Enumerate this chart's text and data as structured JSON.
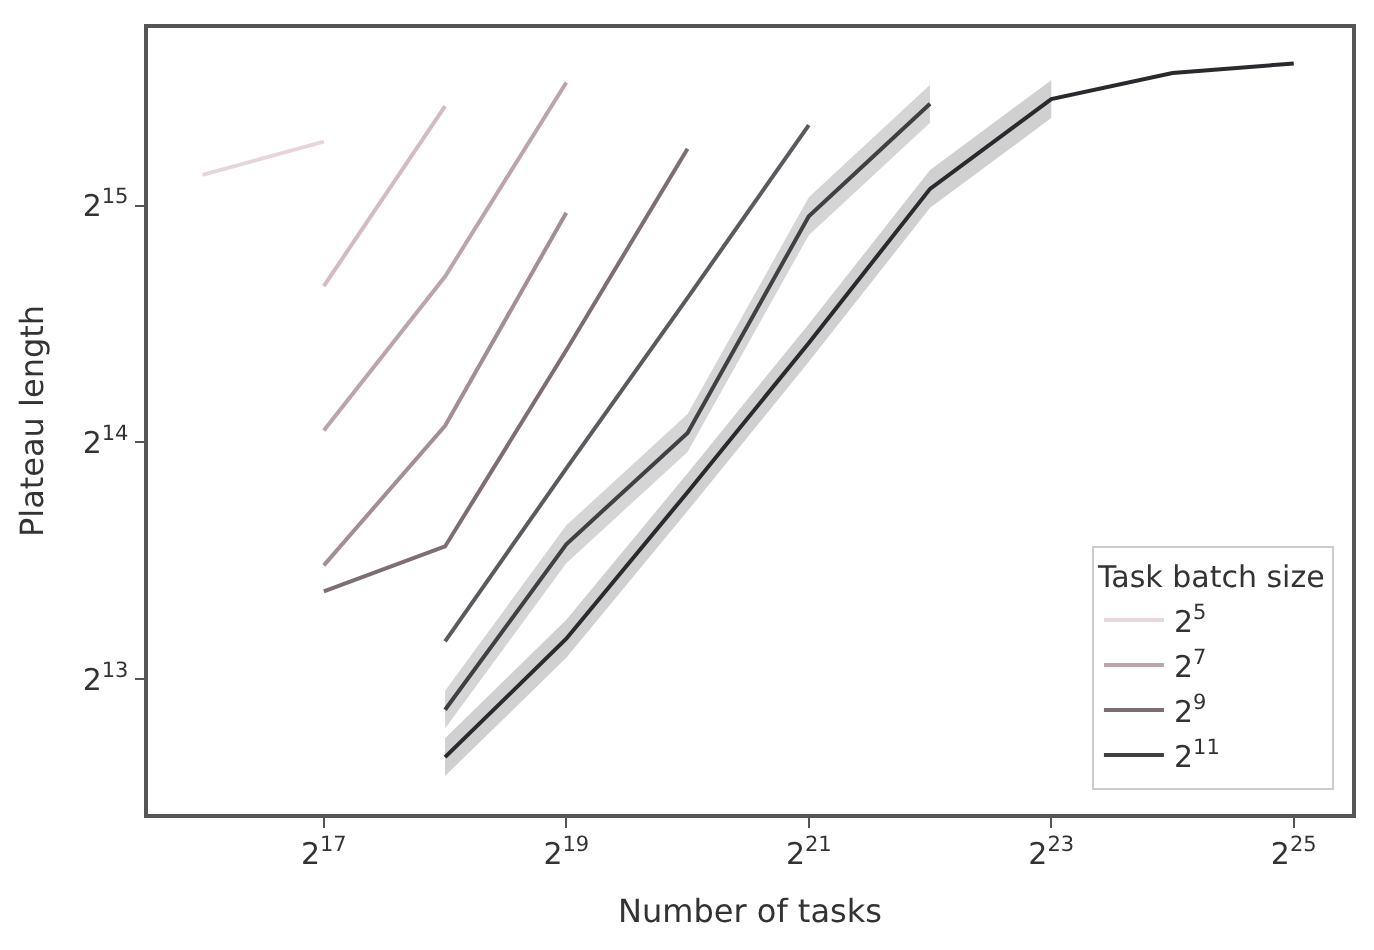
{
  "chart_data": {
    "type": "line",
    "xlabel": "Number of tasks",
    "ylabel": "Plateau length",
    "legend_title": "Task batch size",
    "legend": "bottom right",
    "log": "xy",
    "marker": "none",
    "line_style": "solid",
    "xlim": [
      47970,
      46810000
    ],
    "ylim": [
      5520,
      55110
    ],
    "xticks": [
      {
        "value": 131072,
        "label": "2$^{17}$"
      },
      {
        "value": 524288,
        "label": "2$^{19}$"
      },
      {
        "value": 2097152,
        "label": "2$^{21}$"
      },
      {
        "value": 8388608,
        "label": "2$^{23}$"
      },
      {
        "value": 33554432,
        "label": "2$^{25}$"
      }
    ],
    "yticks": [
      {
        "value": 8192,
        "label": "2$^{13}$"
      },
      {
        "value": 16384,
        "label": "2$^{14}$"
      },
      {
        "value": 32768,
        "label": "2$^{15}$"
      }
    ],
    "series": [
      {
        "name": "2$^{5}$",
        "color": "#e6d6da",
        "x": [
          65536,
          131072
        ],
        "values": [
          35850,
          39520
        ]
      },
      {
        "color": "#d2bcc2",
        "x": [
          131072,
          262144
        ],
        "values": [
          25890,
          43840
        ]
      },
      {
        "name": "2$^{7}$",
        "color": "#bca4ac",
        "x": [
          131072,
          262144,
          524288
        ],
        "values": [
          16960,
          26620,
          46990
        ]
      },
      {
        "color": "#a48e95",
        "x": [
          131072,
          262144,
          524288
        ],
        "values": [
          11430,
          17200,
          32090
        ]
      },
      {
        "name": "2$^{9}$",
        "color": "#7e6e74",
        "x": [
          131072,
          262144,
          524288,
          1048576
        ],
        "values": [
          10590,
          12080,
          21460,
          38700
        ]
      },
      {
        "color": "#5c5a5e",
        "x": [
          262144,
          524288,
          1048576,
          2097152
        ],
        "values": [
          9150,
          15180,
          25010,
          41480
        ]
      },
      {
        "name": "2$^{11}$",
        "color": "#404044",
        "x": [
          262144,
          524288,
          1048576,
          2097152,
          4194304
        ],
        "values": [
          7490,
          12160,
          16840,
          31760,
          44140
        ],
        "lower": [
          7090,
          11500,
          15930,
          30050,
          41760
        ],
        "upper": [
          7920,
          12850,
          17800,
          33570,
          46660
        ]
      },
      {
        "color": "#2a2a2e",
        "x": [
          262144,
          524288,
          1048576,
          2097152,
          4194304,
          8388608,
          16777216,
          33554432
        ],
        "values": [
          6520,
          9220,
          14160,
          21920,
          34410,
          44760,
          48300,
          49680
        ],
        "lower": [
          6170,
          8720,
          13400,
          20740,
          32550,
          42340,
          null,
          null
        ],
        "upper": [
          6890,
          9750,
          14970,
          23170,
          36370,
          47310,
          null,
          null
        ]
      }
    ]
  }
}
